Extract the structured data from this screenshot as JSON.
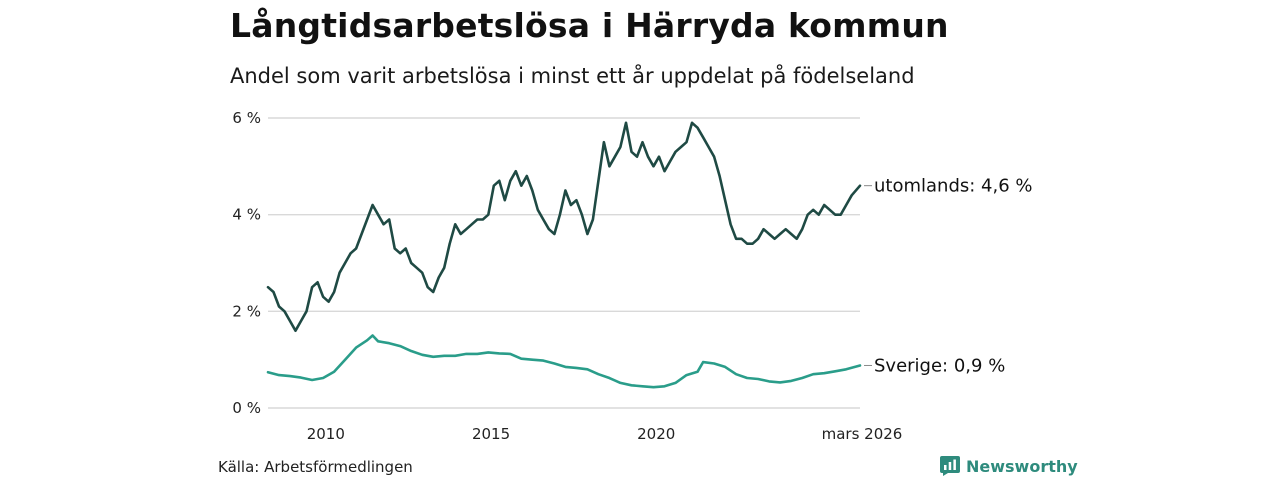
{
  "header": {
    "title": "Långtidsarbetslösa i Härryda kommun",
    "subtitle": "Andel som varit arbetslösa i minst ett år uppdelat på födelseland"
  },
  "footer": {
    "source": "Källa: Arbetsförmedlingen",
    "brand": "Newsworthy",
    "brand_icon": "bar-chart-icon"
  },
  "colors": {
    "utomlands": "#1f4a44",
    "sverige": "#2a9d8a",
    "grid": "#d9d9d9",
    "brand": "#2e8b7d"
  },
  "chart_data": {
    "type": "line",
    "title": "Långtidsarbetslösa i Härryda kommun",
    "subtitle": "Andel som varit arbetslösa i minst ett år uppdelat på födelseland",
    "x_range": [
      "2008-04",
      "2026-03"
    ],
    "x_ticks": [
      {
        "date": "2010-01",
        "label": "2010"
      },
      {
        "date": "2015-01",
        "label": "2015"
      },
      {
        "date": "2020-01",
        "label": "2020"
      },
      {
        "date": "2026-03",
        "label": "mars 2026"
      }
    ],
    "y_range": [
      0,
      6
    ],
    "y_ticks": [
      {
        "value": 0,
        "label": "0 %"
      },
      {
        "value": 2,
        "label": "2 %"
      },
      {
        "value": 4,
        "label": "4 %"
      },
      {
        "value": 6,
        "label": "6 %"
      }
    ],
    "grid": true,
    "series": [
      {
        "name": "utomlands",
        "end_label": "utomlands: 4,6 %",
        "points": [
          [
            "2008-04",
            2.5
          ],
          [
            "2008-06",
            2.4
          ],
          [
            "2008-08",
            2.1
          ],
          [
            "2008-10",
            2.0
          ],
          [
            "2008-12",
            1.8
          ],
          [
            "2009-02",
            1.6
          ],
          [
            "2009-04",
            1.8
          ],
          [
            "2009-06",
            2.0
          ],
          [
            "2009-08",
            2.5
          ],
          [
            "2009-10",
            2.6
          ],
          [
            "2009-12",
            2.3
          ],
          [
            "2010-02",
            2.2
          ],
          [
            "2010-04",
            2.4
          ],
          [
            "2010-06",
            2.8
          ],
          [
            "2010-08",
            3.0
          ],
          [
            "2010-10",
            3.2
          ],
          [
            "2010-12",
            3.3
          ],
          [
            "2011-02",
            3.6
          ],
          [
            "2011-04",
            3.9
          ],
          [
            "2011-06",
            4.2
          ],
          [
            "2011-08",
            4.0
          ],
          [
            "2011-10",
            3.8
          ],
          [
            "2011-12",
            3.9
          ],
          [
            "2012-02",
            3.3
          ],
          [
            "2012-04",
            3.2
          ],
          [
            "2012-06",
            3.3
          ],
          [
            "2012-08",
            3.0
          ],
          [
            "2012-10",
            2.9
          ],
          [
            "2012-12",
            2.8
          ],
          [
            "2013-02",
            2.5
          ],
          [
            "2013-04",
            2.4
          ],
          [
            "2013-06",
            2.7
          ],
          [
            "2013-08",
            2.9
          ],
          [
            "2013-10",
            3.4
          ],
          [
            "2013-12",
            3.8
          ],
          [
            "2014-02",
            3.6
          ],
          [
            "2014-04",
            3.7
          ],
          [
            "2014-06",
            3.8
          ],
          [
            "2014-08",
            3.9
          ],
          [
            "2014-10",
            3.9
          ],
          [
            "2014-12",
            4.0
          ],
          [
            "2015-02",
            4.6
          ],
          [
            "2015-04",
            4.7
          ],
          [
            "2015-06",
            4.3
          ],
          [
            "2015-08",
            4.7
          ],
          [
            "2015-10",
            4.9
          ],
          [
            "2015-12",
            4.6
          ],
          [
            "2016-02",
            4.8
          ],
          [
            "2016-04",
            4.5
          ],
          [
            "2016-06",
            4.1
          ],
          [
            "2016-08",
            3.9
          ],
          [
            "2016-10",
            3.7
          ],
          [
            "2016-12",
            3.6
          ],
          [
            "2017-02",
            4.0
          ],
          [
            "2017-04",
            4.5
          ],
          [
            "2017-06",
            4.2
          ],
          [
            "2017-08",
            4.3
          ],
          [
            "2017-10",
            4.0
          ],
          [
            "2017-12",
            3.6
          ],
          [
            "2018-02",
            3.9
          ],
          [
            "2018-04",
            4.7
          ],
          [
            "2018-06",
            5.5
          ],
          [
            "2018-08",
            5.0
          ],
          [
            "2018-10",
            5.2
          ],
          [
            "2018-12",
            5.4
          ],
          [
            "2019-02",
            5.9
          ],
          [
            "2019-04",
            5.3
          ],
          [
            "2019-06",
            5.2
          ],
          [
            "2019-08",
            5.5
          ],
          [
            "2019-10",
            5.2
          ],
          [
            "2019-12",
            5.0
          ],
          [
            "2020-02",
            5.2
          ],
          [
            "2020-04",
            4.9
          ],
          [
            "2020-06",
            5.1
          ],
          [
            "2020-08",
            5.3
          ],
          [
            "2020-10",
            5.4
          ],
          [
            "2020-12",
            5.5
          ],
          [
            "2021-02",
            5.9
          ],
          [
            "2021-04",
            5.8
          ],
          [
            "2021-06",
            5.6
          ],
          [
            "2021-08",
            5.4
          ],
          [
            "2021-10",
            5.2
          ],
          [
            "2021-12",
            4.8
          ],
          [
            "2022-02",
            4.3
          ],
          [
            "2022-04",
            3.8
          ],
          [
            "2022-06",
            3.5
          ],
          [
            "2022-08",
            3.5
          ],
          [
            "2022-10",
            3.4
          ],
          [
            "2022-12",
            3.4
          ],
          [
            "2023-02",
            3.5
          ],
          [
            "2023-04",
            3.7
          ],
          [
            "2023-06",
            3.6
          ],
          [
            "2023-08",
            3.5
          ],
          [
            "2023-10",
            3.6
          ],
          [
            "2023-12",
            3.7
          ],
          [
            "2024-02",
            3.6
          ],
          [
            "2024-04",
            3.5
          ],
          [
            "2024-06",
            3.7
          ],
          [
            "2024-08",
            4.0
          ],
          [
            "2024-10",
            4.1
          ],
          [
            "2024-12",
            4.0
          ],
          [
            "2025-02",
            4.2
          ],
          [
            "2025-04",
            4.1
          ],
          [
            "2025-06",
            4.0
          ],
          [
            "2025-08",
            4.0
          ],
          [
            "2025-10",
            4.2
          ],
          [
            "2025-12",
            4.4
          ],
          [
            "2026-03",
            4.6
          ]
        ]
      },
      {
        "name": "Sverige",
        "end_label": "Sverige: 0,9 %",
        "points": [
          [
            "2008-04",
            0.74
          ],
          [
            "2008-08",
            0.68
          ],
          [
            "2008-12",
            0.66
          ],
          [
            "2009-04",
            0.63
          ],
          [
            "2009-08",
            0.58
          ],
          [
            "2009-12",
            0.62
          ],
          [
            "2010-04",
            0.75
          ],
          [
            "2010-08",
            1.0
          ],
          [
            "2010-12",
            1.25
          ],
          [
            "2011-04",
            1.4
          ],
          [
            "2011-06",
            1.5
          ],
          [
            "2011-08",
            1.38
          ],
          [
            "2011-12",
            1.34
          ],
          [
            "2012-04",
            1.28
          ],
          [
            "2012-08",
            1.18
          ],
          [
            "2012-12",
            1.1
          ],
          [
            "2013-04",
            1.06
          ],
          [
            "2013-08",
            1.08
          ],
          [
            "2013-12",
            1.08
          ],
          [
            "2014-04",
            1.12
          ],
          [
            "2014-08",
            1.12
          ],
          [
            "2014-12",
            1.15
          ],
          [
            "2015-04",
            1.13
          ],
          [
            "2015-08",
            1.12
          ],
          [
            "2015-12",
            1.02
          ],
          [
            "2016-04",
            1.0
          ],
          [
            "2016-08",
            0.98
          ],
          [
            "2016-12",
            0.92
          ],
          [
            "2017-04",
            0.85
          ],
          [
            "2017-08",
            0.83
          ],
          [
            "2017-12",
            0.8
          ],
          [
            "2018-04",
            0.7
          ],
          [
            "2018-08",
            0.62
          ],
          [
            "2018-12",
            0.52
          ],
          [
            "2019-04",
            0.47
          ],
          [
            "2019-08",
            0.45
          ],
          [
            "2019-12",
            0.43
          ],
          [
            "2020-04",
            0.45
          ],
          [
            "2020-08",
            0.52
          ],
          [
            "2020-12",
            0.68
          ],
          [
            "2021-04",
            0.75
          ],
          [
            "2021-06",
            0.95
          ],
          [
            "2021-10",
            0.92
          ],
          [
            "2022-02",
            0.85
          ],
          [
            "2022-06",
            0.7
          ],
          [
            "2022-10",
            0.62
          ],
          [
            "2023-02",
            0.6
          ],
          [
            "2023-06",
            0.55
          ],
          [
            "2023-10",
            0.53
          ],
          [
            "2024-02",
            0.56
          ],
          [
            "2024-06",
            0.62
          ],
          [
            "2024-10",
            0.7
          ],
          [
            "2025-02",
            0.72
          ],
          [
            "2025-06",
            0.76
          ],
          [
            "2025-10",
            0.8
          ],
          [
            "2026-03",
            0.88
          ]
        ]
      }
    ]
  }
}
